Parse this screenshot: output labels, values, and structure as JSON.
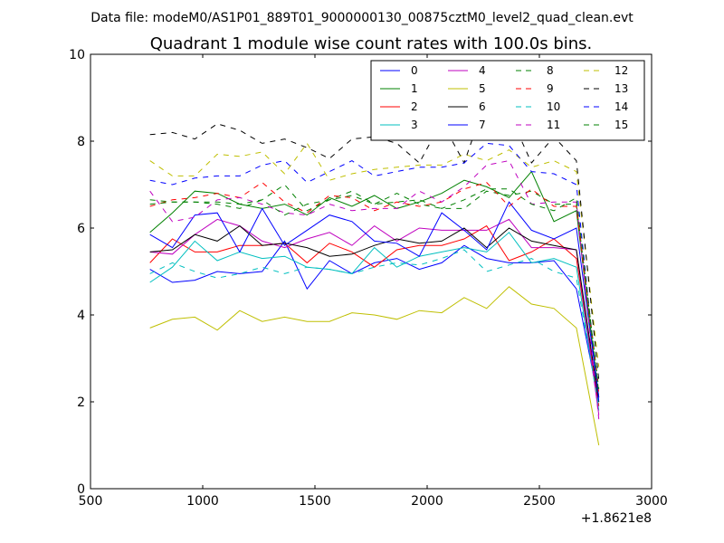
{
  "chart_data": {
    "type": "line",
    "suptitle": "Data file: modeM0/AS1P01_889T01_9000000130_00875cztM0_level2_quad_clean.evt",
    "title": "Quadrant 1 module wise count rates with 100.0s bins.",
    "xlabel": "",
    "ylabel": "",
    "x_offset_label": "+1.8621e8",
    "xlim": [
      500,
      3000
    ],
    "ylim": [
      0,
      10
    ],
    "xticks": [
      500,
      1000,
      1500,
      2000,
      2500,
      3000
    ],
    "yticks": [
      0,
      2,
      4,
      6,
      8,
      10
    ],
    "grid": false,
    "legend_position": "top-right",
    "x": [
      765,
      865,
      965,
      1065,
      1165,
      1265,
      1365,
      1465,
      1565,
      1665,
      1765,
      1865,
      1965,
      2065,
      2165,
      2265,
      2365,
      2465,
      2565,
      2665,
      2765
    ],
    "series": [
      {
        "name": "0",
        "color": "#0000ff",
        "dash": "solid",
        "values": [
          5.05,
          4.75,
          4.8,
          5.0,
          4.95,
          5.0,
          5.7,
          4.6,
          5.25,
          4.95,
          5.2,
          5.3,
          5.05,
          5.2,
          5.6,
          5.3,
          5.2,
          5.2,
          5.25,
          4.6,
          2.0
        ]
      },
      {
        "name": "1",
        "color": "#008000",
        "dash": "solid",
        "values": [
          5.9,
          6.35,
          6.85,
          6.8,
          6.55,
          6.45,
          6.55,
          6.3,
          6.7,
          6.5,
          6.75,
          6.45,
          6.6,
          6.8,
          7.1,
          6.95,
          6.7,
          7.3,
          6.15,
          6.4,
          2.1
        ]
      },
      {
        "name": "2",
        "color": "#ff0000",
        "dash": "solid",
        "values": [
          5.2,
          5.75,
          5.45,
          5.45,
          5.6,
          5.6,
          5.65,
          5.2,
          5.65,
          5.45,
          5.1,
          5.5,
          5.6,
          5.6,
          5.75,
          6.05,
          5.25,
          5.45,
          5.75,
          5.3,
          1.9
        ]
      },
      {
        "name": "3",
        "color": "#00bfbf",
        "dash": "solid",
        "values": [
          4.75,
          5.1,
          5.7,
          5.25,
          5.45,
          5.3,
          5.35,
          5.1,
          5.05,
          4.95,
          5.55,
          5.1,
          5.35,
          5.45,
          5.55,
          5.45,
          5.9,
          5.2,
          5.3,
          5.1,
          1.8
        ]
      },
      {
        "name": "4",
        "color": "#bf00bf",
        "dash": "solid",
        "values": [
          5.45,
          5.4,
          5.85,
          6.2,
          6.05,
          5.7,
          5.55,
          5.75,
          5.9,
          5.6,
          6.05,
          5.7,
          6.0,
          5.95,
          5.95,
          5.95,
          6.2,
          5.55,
          5.55,
          5.5,
          1.7
        ]
      },
      {
        "name": "5",
        "color": "#bfbf00",
        "dash": "solid",
        "values": [
          3.7,
          3.9,
          3.95,
          3.65,
          4.1,
          3.85,
          3.95,
          3.85,
          3.85,
          4.05,
          4.0,
          3.9,
          4.1,
          4.05,
          4.4,
          4.15,
          4.65,
          4.25,
          4.15,
          3.7,
          1.0
        ]
      },
      {
        "name": "6",
        "color": "#000000",
        "dash": "solid",
        "values": [
          5.45,
          5.5,
          5.85,
          5.7,
          6.05,
          5.6,
          5.65,
          5.55,
          5.35,
          5.4,
          5.6,
          5.75,
          5.65,
          5.7,
          6.0,
          5.55,
          6.0,
          5.7,
          5.6,
          5.5,
          2.0
        ]
      },
      {
        "name": "7",
        "color": "#0000ff",
        "dash": "solid",
        "values": [
          5.85,
          5.55,
          6.3,
          6.35,
          5.45,
          6.45,
          5.6,
          5.95,
          6.3,
          6.15,
          5.7,
          5.65,
          5.35,
          6.35,
          5.95,
          5.5,
          6.6,
          5.95,
          5.75,
          6.0,
          2.1
        ]
      },
      {
        "name": "8",
        "color": "#008000",
        "dash": "dashed",
        "values": [
          6.65,
          6.6,
          6.6,
          6.6,
          6.55,
          6.65,
          7.0,
          6.4,
          6.65,
          6.85,
          6.55,
          6.8,
          6.55,
          6.45,
          6.45,
          6.85,
          6.75,
          6.85,
          6.55,
          6.55,
          2.3
        ]
      },
      {
        "name": "9",
        "color": "#ff0000",
        "dash": "dashed",
        "values": [
          6.5,
          6.65,
          6.7,
          6.8,
          6.7,
          7.05,
          6.6,
          6.35,
          6.75,
          6.7,
          6.4,
          6.6,
          6.5,
          6.6,
          6.9,
          7.05,
          6.5,
          6.9,
          6.5,
          6.5,
          2.2
        ]
      },
      {
        "name": "10",
        "color": "#00bfbf",
        "dash": "dashed",
        "values": [
          4.95,
          5.2,
          5.0,
          4.85,
          4.95,
          5.1,
          4.95,
          5.1,
          5.05,
          4.95,
          5.1,
          5.2,
          5.15,
          5.3,
          5.5,
          5.0,
          5.15,
          5.3,
          5.0,
          4.85,
          1.9
        ]
      },
      {
        "name": "11",
        "color": "#bf00bf",
        "dash": "dashed",
        "values": [
          6.85,
          6.15,
          6.25,
          6.65,
          6.7,
          6.55,
          6.35,
          6.3,
          6.55,
          6.4,
          6.45,
          6.45,
          6.85,
          6.6,
          6.95,
          7.45,
          7.55,
          6.55,
          6.6,
          6.6,
          1.6
        ]
      },
      {
        "name": "12",
        "color": "#bfbf00",
        "dash": "dashed",
        "values": [
          7.55,
          7.2,
          7.2,
          7.7,
          7.65,
          7.75,
          7.25,
          7.95,
          7.1,
          7.25,
          7.35,
          7.4,
          7.45,
          7.45,
          7.7,
          7.55,
          7.8,
          7.4,
          7.55,
          7.3,
          2.8
        ]
      },
      {
        "name": "13",
        "color": "#000000",
        "dash": "dashed",
        "values": [
          8.15,
          8.2,
          8.05,
          8.4,
          8.25,
          7.95,
          8.05,
          7.85,
          7.6,
          8.05,
          8.1,
          7.95,
          7.5,
          8.45,
          7.5,
          9.0,
          8.65,
          7.5,
          8.1,
          7.55,
          2.5
        ]
      },
      {
        "name": "14",
        "color": "#0000ff",
        "dash": "dashed",
        "values": [
          7.1,
          7.0,
          7.15,
          7.2,
          7.2,
          7.45,
          7.55,
          7.05,
          7.3,
          7.55,
          7.2,
          7.3,
          7.4,
          7.4,
          7.5,
          7.95,
          7.9,
          7.3,
          7.25,
          7.0,
          2.0
        ]
      },
      {
        "name": "15",
        "color": "#008000",
        "dash": "dashed",
        "values": [
          6.55,
          6.6,
          6.6,
          6.55,
          6.45,
          6.65,
          6.3,
          6.55,
          6.65,
          6.75,
          6.55,
          6.6,
          6.65,
          6.45,
          6.65,
          6.9,
          6.9,
          6.55,
          6.4,
          6.7,
          2.2
        ]
      }
    ]
  }
}
